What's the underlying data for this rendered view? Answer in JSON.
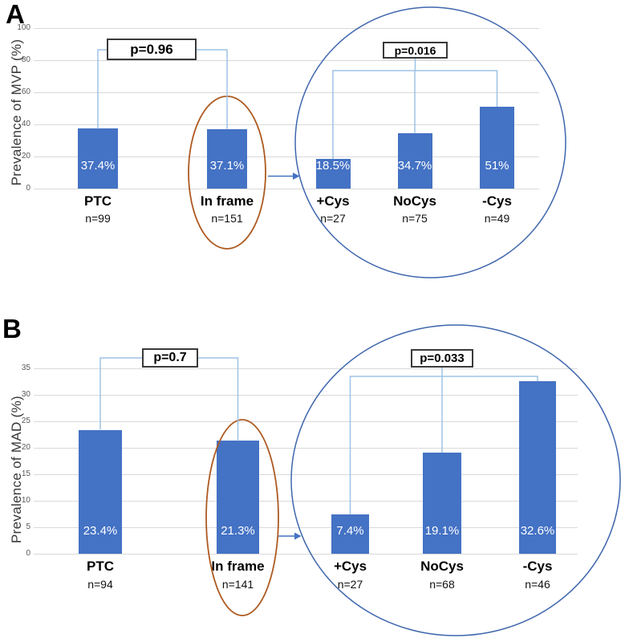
{
  "chart_data": [
    {
      "panel_label": "A",
      "type": "bar",
      "title": "",
      "xlabel": "",
      "ylabel": "Prevalence of MVP (%)",
      "ylim": [
        0,
        100
      ],
      "yticks": [
        0,
        20,
        40,
        60,
        80,
        100
      ],
      "grid": true,
      "legend": "none",
      "categories": [
        "PTC",
        "In frame",
        "+Cys",
        "NoCys",
        "-Cys"
      ],
      "values": [
        37.4,
        37.1,
        18.5,
        34.7,
        51
      ],
      "value_labels": [
        "37.4%",
        "37.1%",
        "18.5%",
        "34.7%",
        "51%"
      ],
      "n_labels": [
        "n=99",
        "n=151",
        "n=27",
        "n=75",
        "n=49"
      ],
      "annotations": {
        "p_values": [
          {
            "label": "p=0.96",
            "compares": [
              "PTC",
              "In frame"
            ]
          },
          {
            "label": "p=0.016",
            "compares": [
              "+Cys",
              "NoCys",
              "-Cys"
            ]
          }
        ],
        "ellipse_highlight": "In frame",
        "circle_highlight": [
          "+Cys",
          "NoCys",
          "-Cys"
        ],
        "arrow_from": "In frame",
        "arrow_to": "Cys subgroup circle"
      }
    },
    {
      "panel_label": "B",
      "type": "bar",
      "title": "",
      "xlabel": "",
      "ylabel": "Prevalence of MAD (%)",
      "ylim": [
        0,
        35
      ],
      "yticks": [
        0,
        5,
        10,
        15,
        20,
        25,
        30,
        35
      ],
      "grid": true,
      "legend": "none",
      "categories": [
        "PTC",
        "In frame",
        "+Cys",
        "NoCys",
        "-Cys"
      ],
      "values": [
        23.4,
        21.3,
        7.4,
        19.1,
        32.6
      ],
      "value_labels": [
        "23.4%",
        "21.3%",
        "7.4%",
        "19.1%",
        "32.6%"
      ],
      "n_labels": [
        "n=94",
        "n=141",
        "n=27",
        "n=68",
        "n=46"
      ],
      "annotations": {
        "p_values": [
          {
            "label": "p=0.7",
            "compares": [
              "PTC",
              "In frame"
            ]
          },
          {
            "label": "p=0.033",
            "compares": [
              "+Cys",
              "NoCys",
              "-Cys"
            ]
          }
        ],
        "ellipse_highlight": "In frame",
        "circle_highlight": [
          "+Cys",
          "NoCys",
          "-Cys"
        ],
        "arrow_from": "In frame",
        "arrow_to": "Cys subgroup circle"
      }
    }
  ],
  "colors": {
    "bar": "#4472C4",
    "bracket": "#9DC3E6",
    "circle": "#3F66AD",
    "ellipse": "#AD5A21",
    "arrow": "#4472C4",
    "gridline": "#D9D9D9",
    "value_text": "#FFFFFF"
  }
}
